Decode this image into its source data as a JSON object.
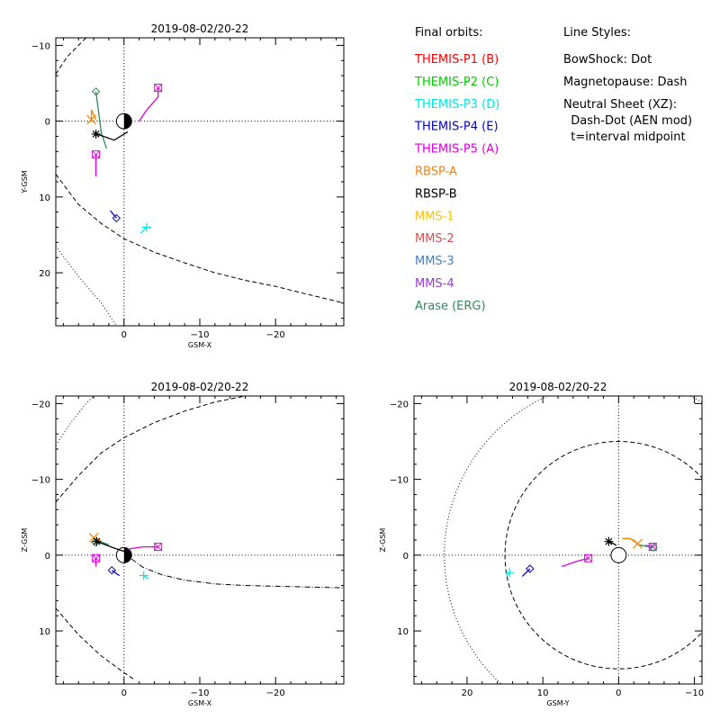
{
  "chart_data": [
    {
      "id": "xy",
      "type": "line",
      "title": "2019-08-02/20-22",
      "xlabel": "GSM-X",
      "ylabel": "Y-GSM",
      "xlim": [
        9.0,
        -29.0
      ],
      "ylim": [
        -11.0,
        27.0
      ],
      "xticks": [
        {
          "v": 0,
          "label": "0"
        },
        {
          "v": -10,
          "label": "−10"
        },
        {
          "v": -20,
          "label": "−20"
        }
      ],
      "yticks": [
        {
          "v": -10,
          "label": "−10"
        },
        {
          "v": 0,
          "label": "0"
        },
        {
          "v": 10,
          "label": "10"
        },
        {
          "v": 20,
          "label": "20"
        }
      ],
      "curves": [
        {
          "kind": "dash",
          "points": [
            [
              9,
              7
            ],
            [
              6,
              11
            ],
            [
              3,
              13.5
            ],
            [
              0,
              15.5
            ],
            [
              -4,
              17.3
            ],
            [
              -8,
              18.7
            ],
            [
              -12,
              20
            ],
            [
              -16,
              21
            ],
            [
              -20,
              21.8
            ],
            [
              -24,
              22.8
            ],
            [
              -29,
              24
            ]
          ]
        },
        {
          "kind": "dash",
          "points": [
            [
              9,
              -6.2
            ],
            [
              7.5,
              -8.5
            ],
            [
              6,
              -10
            ],
            [
              5,
              -11
            ]
          ]
        },
        {
          "kind": "dot",
          "points": [
            [
              9,
              16.5
            ],
            [
              6,
              20.5
            ],
            [
              3,
              24
            ],
            [
              1,
              27
            ]
          ]
        }
      ],
      "orbits": [
        {
          "sc": "THEMIS-P5 (A)",
          "marker": "square",
          "points": [
            [
              -2,
              0
            ],
            [
              -3,
              -1.5
            ],
            [
              -4.5,
              -3.2
            ],
            [
              -4.5,
              -4.4
            ]
          ]
        },
        {
          "sc": "THEMIS-P5 (A)",
          "marker": "square",
          "points": [
            [
              3.7,
              7.3
            ],
            [
              3.7,
              5.8
            ],
            [
              3.7,
              4.4
            ]
          ]
        },
        {
          "sc": "Arase (ERG)",
          "marker": "diamond",
          "points": [
            [
              2.3,
              3.6
            ],
            [
              3,
              1.5
            ],
            [
              3.7,
              -3.9
            ]
          ]
        },
        {
          "sc": "RBSP-A",
          "marker": "x",
          "points": [
            [
              3.7,
              -0.2
            ],
            [
              4.3,
              -1.5
            ],
            [
              4.3,
              -0.2
            ]
          ]
        },
        {
          "sc": "RBSP-B",
          "marker": "star",
          "points": [
            [
              -0.5,
              1.4
            ],
            [
              1.3,
              2.5
            ],
            [
              3,
              1.9
            ],
            [
              3.7,
              1.7
            ]
          ]
        },
        {
          "sc": "THEMIS-P4 (E)",
          "marker": "diamond",
          "points": [
            [
              1.8,
              11.8
            ],
            [
              1.0,
              12.8
            ]
          ]
        },
        {
          "sc": "THEMIS-P3 (D)",
          "marker": "plus",
          "points": [
            [
              -2.2,
              14.8
            ],
            [
              -3.0,
              14.0
            ]
          ]
        }
      ]
    },
    {
      "id": "xz",
      "type": "line",
      "title": "2019-08-02/20-22",
      "xlabel": "GSM-X",
      "ylabel": "Z-GSM",
      "xlim": [
        9.0,
        -29.0
      ],
      "ylim": [
        -21.0,
        17.0
      ],
      "xticks": [
        {
          "v": 0,
          "label": "0"
        },
        {
          "v": -10,
          "label": "−10"
        },
        {
          "v": -20,
          "label": "−20"
        }
      ],
      "yticks": [
        {
          "v": 10,
          "label": "10"
        },
        {
          "v": 0,
          "label": "0"
        },
        {
          "v": -10,
          "label": "−10"
        },
        {
          "v": -20,
          "label": "−20"
        }
      ],
      "curves": [
        {
          "kind": "dash",
          "points": [
            [
              9,
              7
            ],
            [
              6,
              10.5
            ],
            [
              3,
              13.3
            ],
            [
              0,
              15.5
            ],
            [
              -1.5,
              16.5
            ]
          ]
        },
        {
          "kind": "dash",
          "points": [
            [
              9,
              -7
            ],
            [
              6,
              -10.5
            ],
            [
              3,
              -13.5
            ],
            [
              0,
              -15.5
            ],
            [
              -4,
              -17.5
            ],
            [
              -8,
              -19
            ],
            [
              -12,
              -20.2
            ],
            [
              -16,
              -21
            ]
          ]
        },
        {
          "kind": "dot",
          "points": [
            [
              9,
              -14.5
            ],
            [
              7,
              -17.5
            ],
            [
              5,
              -20
            ],
            [
              4,
              -21
            ]
          ]
        },
        {
          "kind": "dashdot",
          "points": [
            [
              -1,
              0.5
            ],
            [
              -2.5,
              1.6
            ],
            [
              -5,
              2.6
            ],
            [
              -8,
              3.3
            ],
            [
              -12,
              3.8
            ],
            [
              -16,
              4.0
            ],
            [
              -20,
              4.1
            ],
            [
              -24,
              4.2
            ],
            [
              -29,
              4.3
            ]
          ]
        }
      ],
      "orbits": [
        {
          "sc": "THEMIS-P5 (A)",
          "marker": "square",
          "points": [
            [
              -0.5,
              -0.8
            ],
            [
              -2.5,
              -1.1
            ],
            [
              -4.5,
              -1.1
            ]
          ]
        },
        {
          "sc": "THEMIS-P5 (A)",
          "marker": "square",
          "points": [
            [
              3.7,
              1.5
            ],
            [
              3.7,
              0.4
            ]
          ]
        },
        {
          "sc": "RBSP-A",
          "marker": "x",
          "points": [
            [
              3.0,
              -1.8
            ],
            [
              3.6,
              -2.2
            ],
            [
              4.0,
              -2.3
            ]
          ]
        },
        {
          "sc": "Arase (ERG)",
          "marker": "diamond",
          "points": [
            [
              2.0,
              -1.4
            ],
            [
              3.3,
              -1.8
            ],
            [
              3.8,
              -1.7
            ]
          ]
        },
        {
          "sc": "RBSP-B",
          "marker": "star",
          "points": [
            [
              -0.6,
              -0.3
            ],
            [
              1.5,
              -1.0
            ],
            [
              3.6,
              -1.8
            ]
          ]
        },
        {
          "sc": "THEMIS-P4 (E)",
          "marker": "diamond",
          "points": [
            [
              0.6,
              2.7
            ],
            [
              1.6,
              2.0
            ]
          ]
        },
        {
          "sc": "THEMIS-P3 (D)",
          "marker": "plus",
          "points": [
            [
              -3.2,
              3.1
            ],
            [
              -2.6,
              2.7
            ]
          ]
        }
      ]
    },
    {
      "id": "yz",
      "type": "line",
      "title": "2019-08-02/20-22",
      "xlabel": "GSM-Y",
      "ylabel": "Z-GSM",
      "xlim": [
        27.0,
        -11.0
      ],
      "ylim": [
        -21.0,
        17.0
      ],
      "xticks": [
        {
          "v": 20,
          "label": "20"
        },
        {
          "v": 10,
          "label": "10"
        },
        {
          "v": 0,
          "label": "0"
        },
        {
          "v": -10,
          "label": "−10"
        }
      ],
      "yticks": [
        {
          "v": 10,
          "label": "10"
        },
        {
          "v": 0,
          "label": "0"
        },
        {
          "v": -10,
          "label": "−10"
        },
        {
          "v": -20,
          "label": "−20"
        }
      ],
      "circles": [
        {
          "kind": "dash",
          "r": 15.0
        },
        {
          "kind": "dot",
          "r": 23.0
        }
      ],
      "orbits": [
        {
          "sc": "THEMIS-P5 (A)",
          "marker": "square",
          "points": [
            [
              7.5,
              1.5
            ],
            [
              5.5,
              0.8
            ],
            [
              4.0,
              0.4
            ]
          ]
        },
        {
          "sc": "THEMIS-P5 (A)",
          "marker": "square",
          "points": [
            [
              -3.5,
              -1.3
            ],
            [
              -4.5,
              -1.1
            ]
          ]
        },
        {
          "sc": "Arase (ERG)",
          "marker": "diamond",
          "points": [
            [
              -2.5,
              -1.4
            ],
            [
              -3.5,
              -1.2
            ],
            [
              -4.6,
              -1.0
            ]
          ]
        },
        {
          "sc": "RBSP-A",
          "marker": "x",
          "points": [
            [
              -0.5,
              -2.2
            ],
            [
              -1.5,
              -2.2
            ],
            [
              -2.5,
              -1.5
            ]
          ]
        },
        {
          "sc": "RBSP-B",
          "marker": "star",
          "points": [
            [
              0.3,
              -1.3
            ],
            [
              0.8,
              -1.6
            ],
            [
              1.3,
              -1.8
            ]
          ]
        },
        {
          "sc": "THEMIS-P4 (E)",
          "marker": "diamond",
          "points": [
            [
              12.7,
              2.8
            ],
            [
              11.7,
              1.8
            ]
          ]
        },
        {
          "sc": "THEMIS-P3 (D)",
          "marker": "plus",
          "points": [
            [
              14.8,
              2.7
            ],
            [
              14.4,
              2.3
            ]
          ]
        }
      ]
    }
  ],
  "legend": {
    "orbits_title": "Final orbits:",
    "items": [
      {
        "label": "THEMIS-P1 (B)",
        "color": "#ff0000"
      },
      {
        "label": "THEMIS-P2 (C)",
        "color": "#00cc00"
      },
      {
        "label": "THEMIS-P3 (D)",
        "color": "#00e5e5"
      },
      {
        "label": "THEMIS-P4 (E)",
        "color": "#0000cc"
      },
      {
        "label": "THEMIS-P5 (A)",
        "color": "#dd00dd"
      },
      {
        "label": "RBSP-A",
        "color": "#ff8000"
      },
      {
        "label": "RBSP-B",
        "color": "#000000"
      },
      {
        "label": "MMS-1",
        "color": "#ffc000"
      },
      {
        "label": "MMS-2",
        "color": "#d05050"
      },
      {
        "label": "MMS-3",
        "color": "#4a80c0"
      },
      {
        "label": "MMS-4",
        "color": "#9a35d8"
      },
      {
        "label": "Arase (ERG)",
        "color": "#2e8b57"
      }
    ],
    "styles_title": "Line Styles:",
    "style_lines": [
      "BowShock: Dot",
      "Magnetopause: Dash",
      "Neutral Sheet (XZ):",
      "  Dash-Dot (AEN mod)",
      "  t=interval midpoint"
    ]
  }
}
